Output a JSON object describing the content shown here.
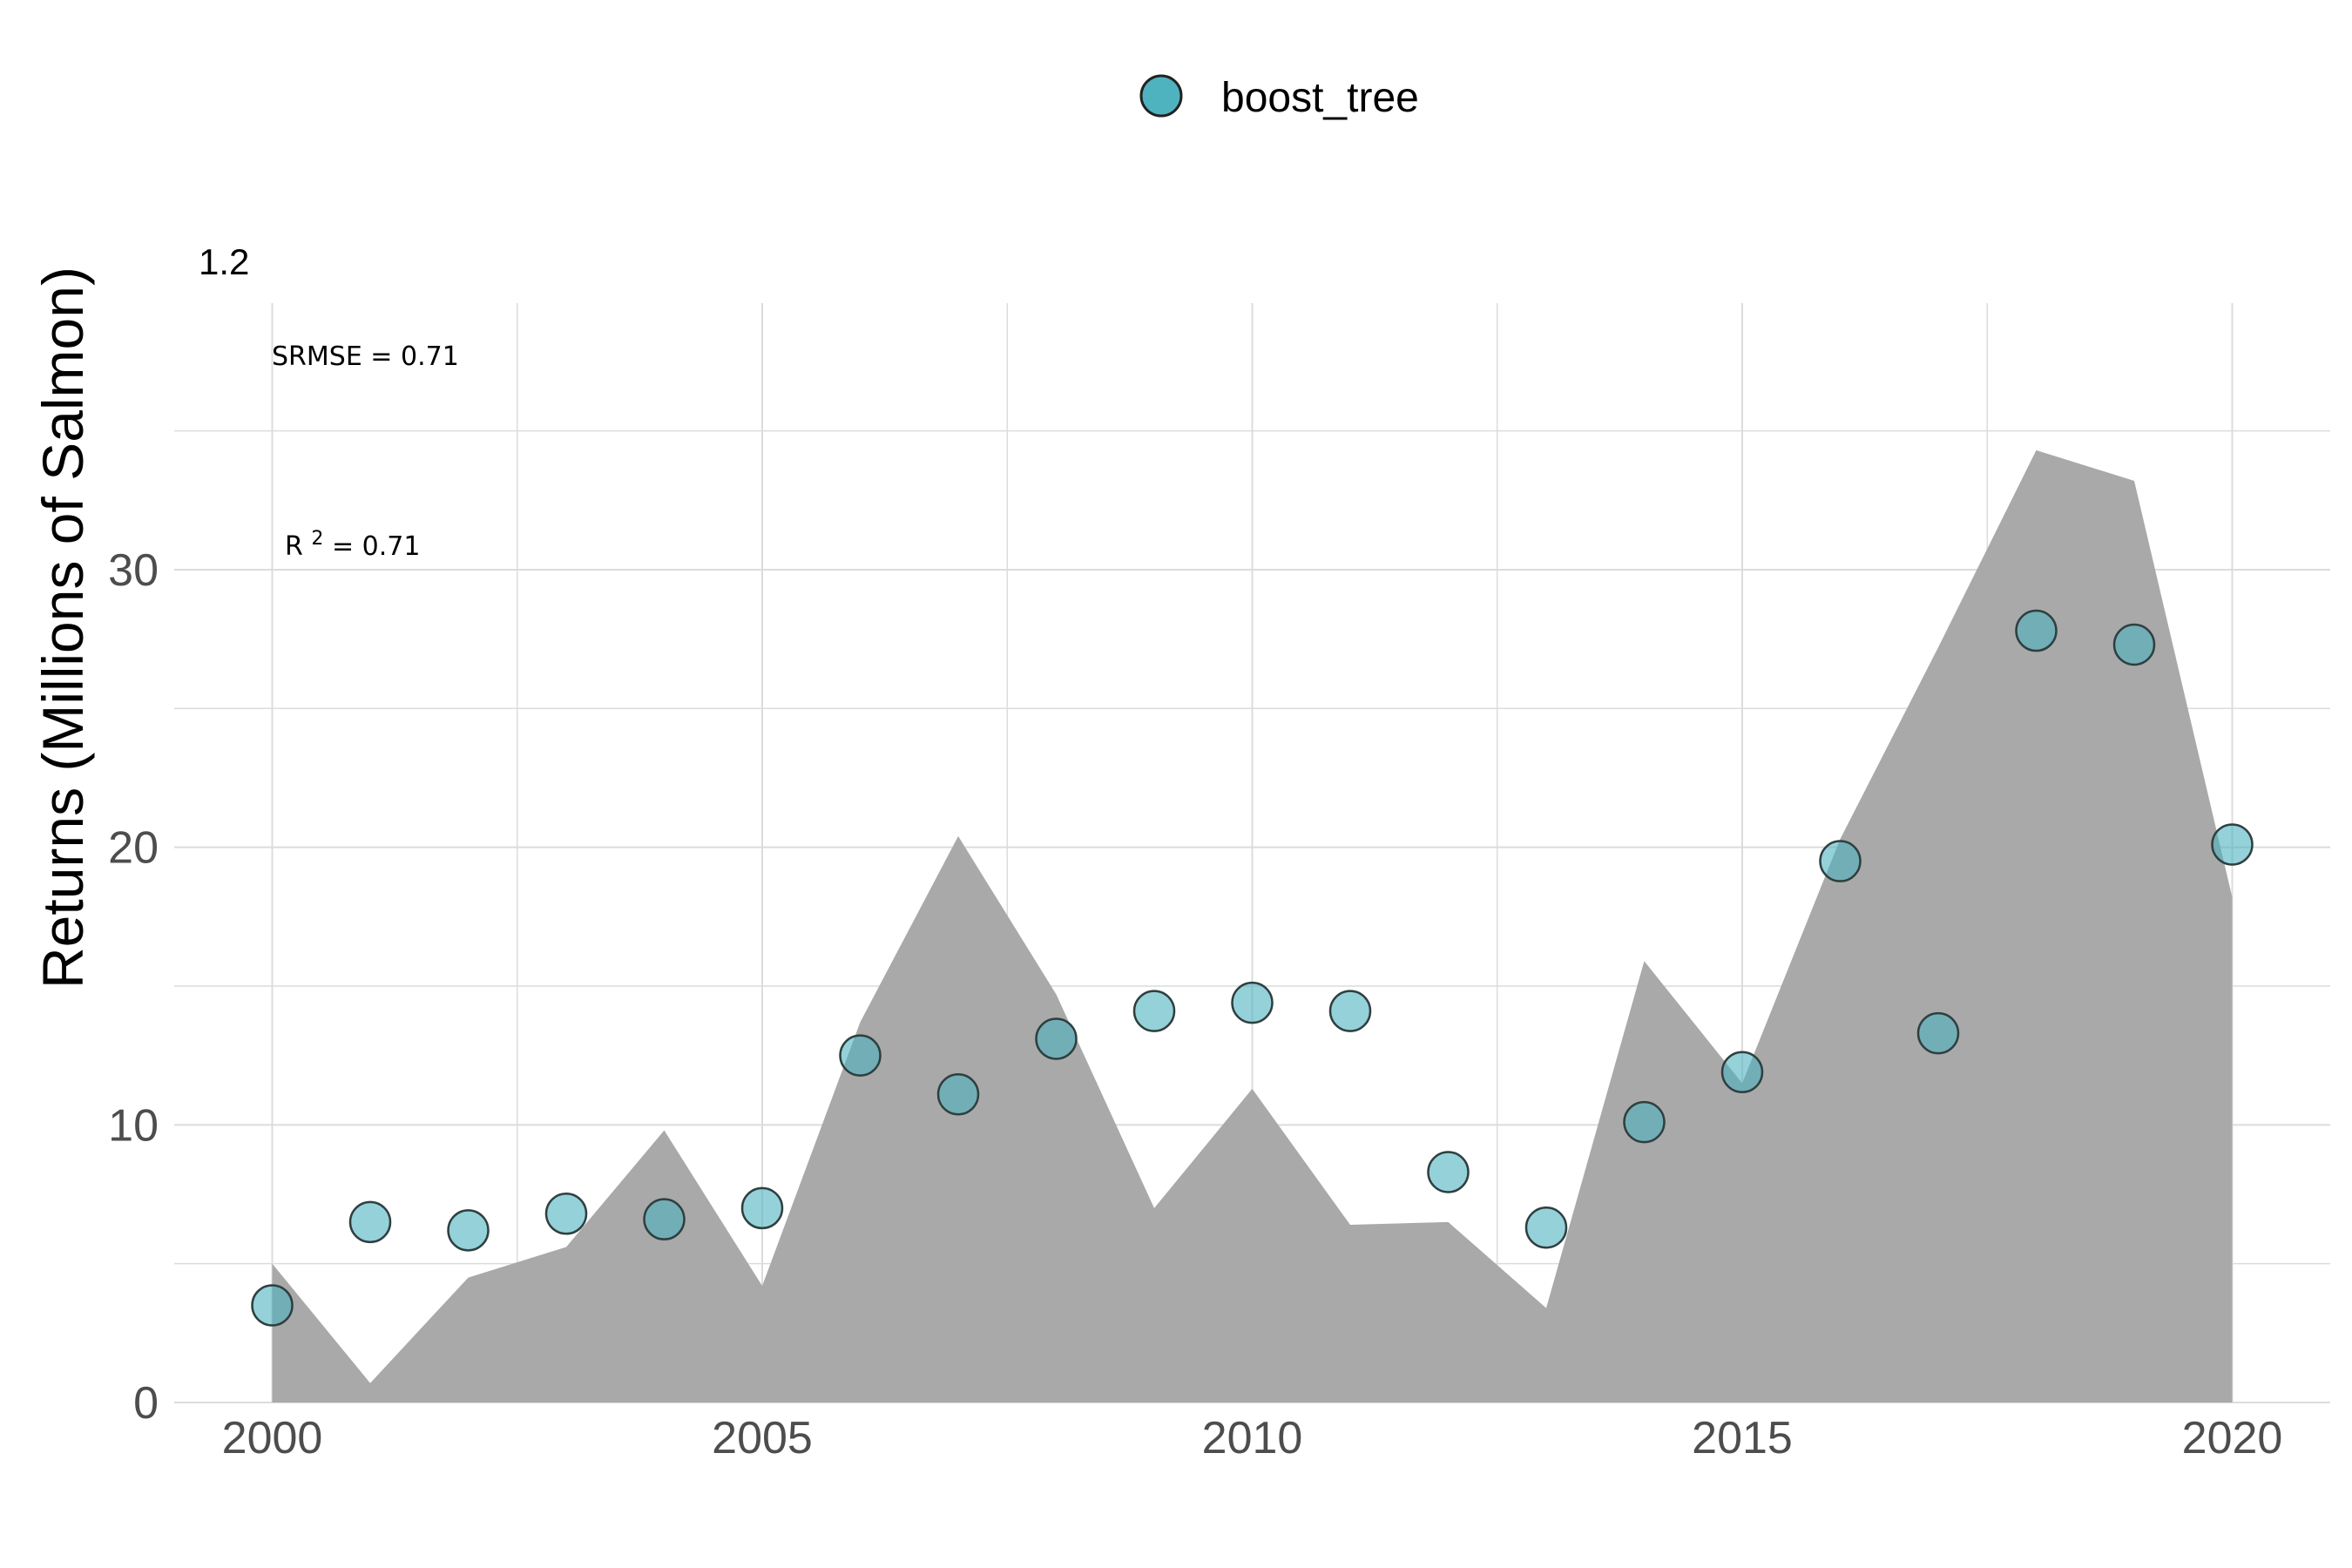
{
  "chart_data": {
    "type": "scatter",
    "title": "",
    "xlabel": "",
    "ylabel": "Returns (Millions of Salmon)",
    "corner_label": "1.2",
    "x_ticks": [
      "2000",
      "2005",
      "2010",
      "2015",
      "2020"
    ],
    "y_ticks": [
      "0",
      "10",
      "20",
      "30"
    ],
    "xlim": [
      1999,
      2021
    ],
    "ylim": [
      0,
      39.6
    ],
    "grid": true,
    "legend_position": "top",
    "annotations": {
      "srmse": "SRMSE = 0.71",
      "r2_prefix": "R",
      "r2_sup": "2",
      "r2_suffix": " = 0.71"
    },
    "observed_area": {
      "color": "#a9a9a9",
      "x": [
        2000,
        2001,
        2002,
        2003,
        2004,
        2005,
        2006,
        2007,
        2008,
        2009,
        2010,
        2011,
        2012,
        2013,
        2014,
        2015,
        2016,
        2017,
        2018,
        2019,
        2020
      ],
      "y": [
        5.0,
        0.7,
        4.5,
        5.6,
        9.8,
        4.2,
        13.7,
        20.4,
        14.7,
        7.0,
        11.3,
        6.4,
        6.5,
        3.4,
        15.9,
        11.5,
        20.3,
        27.2,
        34.3,
        33.2,
        18.2
      ]
    },
    "series": [
      {
        "name": "boost_tree",
        "color": "#4fb3bf",
        "x": [
          2000,
          2001,
          2002,
          2003,
          2004,
          2005,
          2006,
          2007,
          2008,
          2009,
          2010,
          2011,
          2012,
          2013,
          2014,
          2015,
          2016,
          2017,
          2018,
          2019,
          2020
        ],
        "y": [
          3.5,
          6.5,
          6.2,
          6.8,
          6.6,
          7.0,
          12.5,
          11.1,
          13.1,
          14.1,
          14.4,
          14.1,
          8.3,
          6.3,
          10.1,
          11.9,
          19.5,
          13.3,
          27.8,
          27.3,
          20.1
        ]
      }
    ]
  }
}
